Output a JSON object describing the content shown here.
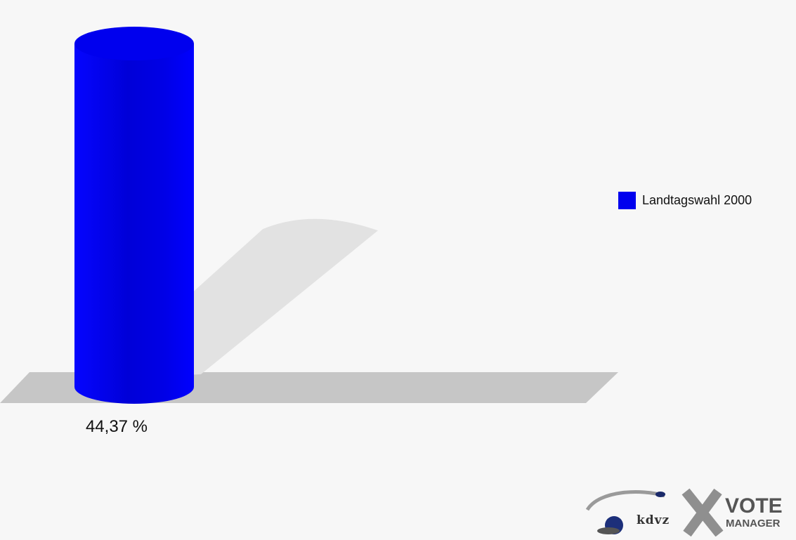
{
  "chart_data": {
    "type": "bar",
    "categories": [
      ""
    ],
    "series": [
      {
        "name": "Landtagswahl 2000",
        "values": [
          44.37
        ]
      }
    ],
    "data_labels": [
      "44,37 %"
    ],
    "ylim": [
      0,
      50
    ],
    "grid": false,
    "legend_position": "right",
    "colors": {
      "bar": "#0000ee",
      "floor": "#c6c6c6",
      "shadow": "#e2e2e2",
      "background": "#f7f7f7"
    }
  },
  "logo": {
    "kdvz_text": "kdvz",
    "vote_text": "VOTE",
    "manager_text": "MANAGER"
  }
}
